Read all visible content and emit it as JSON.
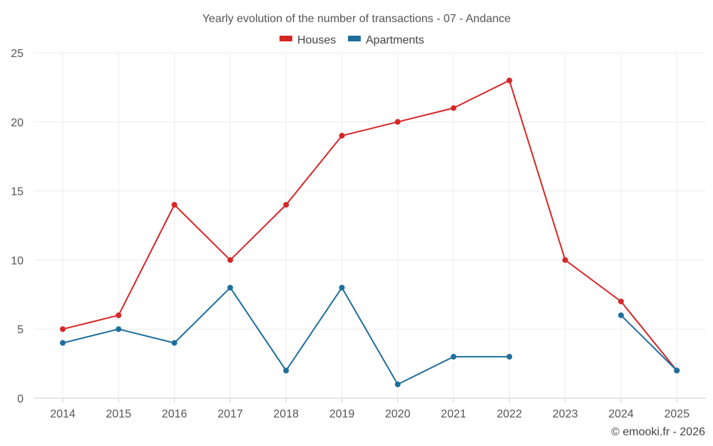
{
  "chart_data": {
    "type": "line",
    "title": "Yearly evolution of the number of transactions - 07 - Andance",
    "categories": [
      "2014",
      "2015",
      "2016",
      "2017",
      "2018",
      "2019",
      "2020",
      "2021",
      "2022",
      "2023",
      "2024",
      "2025"
    ],
    "series": [
      {
        "name": "Houses",
        "color": "#d62728",
        "values": [
          5,
          6,
          14,
          10,
          14,
          19,
          20,
          21,
          23,
          10,
          7,
          2
        ]
      },
      {
        "name": "Apartments",
        "color": "#1f6e9c",
        "values": [
          4,
          5,
          4,
          8,
          2,
          8,
          1,
          3,
          3,
          null,
          6,
          2
        ]
      }
    ],
    "ylim": [
      0,
      25
    ],
    "yticks": [
      0,
      5,
      10,
      15,
      20,
      25
    ],
    "xlabel": "",
    "ylabel": "",
    "grid": true,
    "legend_position": "top-center"
  },
  "credit": "© emooki.fr - 2026"
}
